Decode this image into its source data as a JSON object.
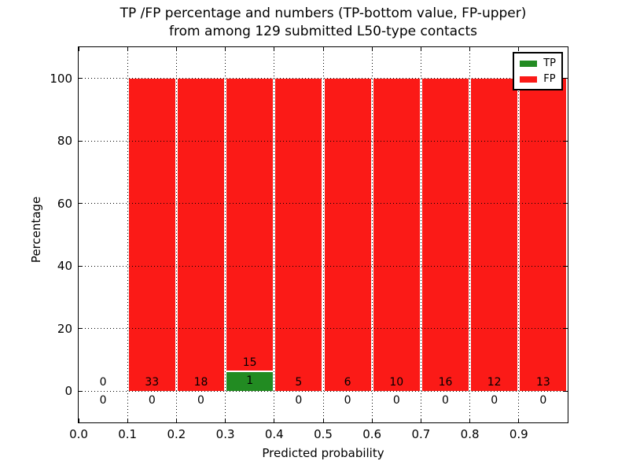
{
  "chart_data": {
    "type": "bar",
    "stacked": true,
    "title_line1": "TP /FP percentage and numbers (TP-bottom value, FP-upper)",
    "title_line2": "from among 129 submitted L50-type contacts",
    "xlabel": "Predicted probability",
    "ylabel": "Percentage",
    "total_contacts": 129,
    "xlim": [
      0.0,
      1.0
    ],
    "ylim": [
      -10,
      110
    ],
    "bin_width": 0.1,
    "bin_starts": [
      0.0,
      0.1,
      0.2,
      0.3,
      0.4,
      0.5,
      0.6,
      0.7,
      0.8,
      0.9
    ],
    "x_tick_labels": [
      "0.0",
      "0.1",
      "0.2",
      "0.3",
      "0.4",
      "0.5",
      "0.6",
      "0.7",
      "0.8",
      "0.9"
    ],
    "y_ticks": [
      0,
      20,
      40,
      60,
      80,
      100
    ],
    "grid": "dotted, drawn over bars",
    "series": [
      {
        "name": "TP",
        "color": "#228B22",
        "counts": [
          0,
          0,
          0,
          1,
          0,
          0,
          0,
          0,
          0,
          0
        ],
        "percent": [
          0,
          0,
          0,
          6.25,
          0,
          0,
          0,
          0,
          0,
          0
        ]
      },
      {
        "name": "FP",
        "color": "#FB1A17",
        "counts": [
          0,
          33,
          18,
          15,
          5,
          6,
          10,
          16,
          12,
          13
        ],
        "percent": [
          0,
          100,
          100,
          93.75,
          100,
          100,
          100,
          100,
          100,
          100
        ]
      }
    ],
    "legend": {
      "position": "upper right",
      "entries": [
        {
          "label": "TP",
          "color": "#228B22"
        },
        {
          "label": "FP",
          "color": "#FB1A17"
        }
      ]
    }
  }
}
